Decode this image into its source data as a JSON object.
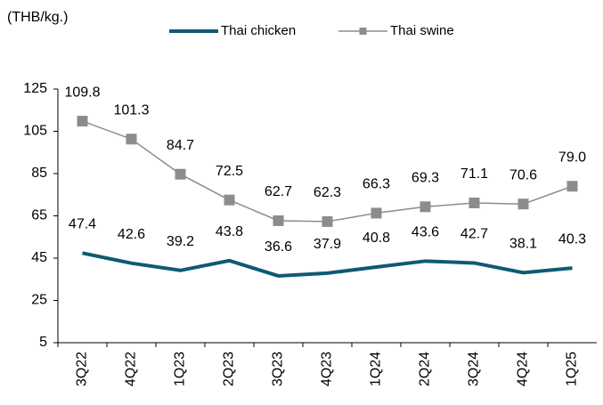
{
  "chart_data": {
    "type": "line",
    "axis_label": "(THB/kg.)",
    "categories": [
      "3Q22",
      "4Q22",
      "1Q23",
      "2Q23",
      "3Q23",
      "4Q23",
      "1Q24",
      "2Q24",
      "3Q24",
      "4Q24",
      "1Q25"
    ],
    "series": [
      {
        "name": "Thai chicken",
        "color": "#0e5a73",
        "values": [
          47.4,
          42.6,
          39.2,
          43.8,
          36.6,
          37.9,
          40.8,
          43.6,
          42.7,
          38.1,
          40.3
        ]
      },
      {
        "name": "Thai swine",
        "color": "#8c8c8c",
        "marker": "square",
        "values": [
          109.8,
          101.3,
          84.7,
          72.5,
          62.7,
          62.3,
          66.3,
          69.3,
          71.1,
          70.6,
          79
        ],
        "value_labels": [
          "109.8",
          "101.3",
          "84.7",
          "72.5",
          "62.7",
          "62.3",
          "66.3",
          "69.3",
          "71.1",
          "70.6",
          "79.0"
        ]
      }
    ],
    "ylim": [
      5,
      125
    ],
    "yticks": [
      5,
      25,
      45,
      65,
      85,
      105,
      125
    ],
    "grid": false
  }
}
